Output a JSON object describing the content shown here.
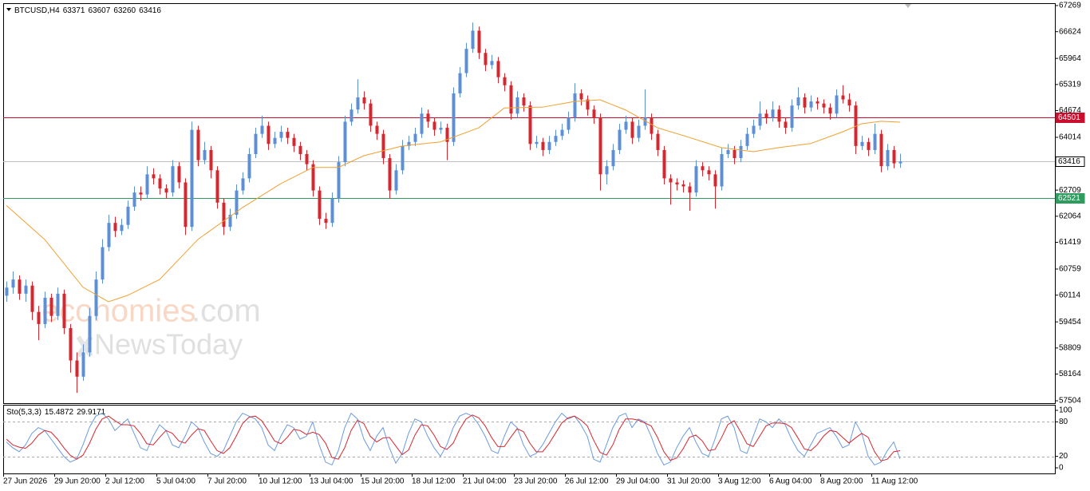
{
  "chart_data": {
    "type": "candlestick",
    "symbol": "BTCUSD,H4",
    "colors": {
      "up": "#5b8fd8",
      "down": "#d7262e",
      "ma": "#f0a030",
      "bid": "#c0c0c0"
    },
    "ylim": [
      57504,
      67269
    ],
    "yticks": [
      67269,
      66624,
      65964,
      65319,
      64674,
      64014,
      62709,
      62064,
      61419,
      60759,
      60114,
      59454,
      58809,
      58164,
      57504
    ],
    "x_labels": [
      "27 Jun 2026",
      "29 Jun 20:00",
      "2 Jul 12:00",
      "5 Jul 04:00",
      "7 Jul 20:00",
      "10 Jul 12:00",
      "13 Jul 04:00",
      "15 Jul 20:00",
      "18 Jul 12:00",
      "21 Jul 04:00",
      "23 Jul 20:00",
      "26 Jul 12:00",
      "29 Jul 04:00",
      "31 Jul 20:00",
      "3 Aug 12:00",
      "6 Aug 04:00",
      "8 Aug 20:00",
      "11 Aug 12:00"
    ],
    "candles": [
      [
        60100,
        60450,
        59950,
        60300
      ],
      [
        60300,
        60700,
        60150,
        60500
      ],
      [
        60500,
        60600,
        60000,
        60150
      ],
      [
        60150,
        60500,
        59950,
        60350
      ],
      [
        60350,
        60450,
        59500,
        59700
      ],
      [
        59700,
        59850,
        59000,
        59400
      ],
      [
        59400,
        60200,
        59300,
        60050
      ],
      [
        60050,
        60150,
        59450,
        59600
      ],
      [
        59600,
        60300,
        59500,
        60150
      ],
      [
        60150,
        60250,
        59150,
        59300
      ],
      [
        59300,
        59400,
        58200,
        58500
      ],
      [
        58500,
        58700,
        57700,
        58100
      ],
      [
        58100,
        58900,
        58000,
        58700
      ],
      [
        58700,
        59800,
        58600,
        59600
      ],
      [
        59600,
        60700,
        59500,
        60500
      ],
      [
        60500,
        61500,
        60400,
        61300
      ],
      [
        61300,
        62100,
        61200,
        61900
      ],
      [
        61900,
        62050,
        61550,
        61700
      ],
      [
        61700,
        62000,
        61600,
        61850
      ],
      [
        61850,
        62450,
        61750,
        62300
      ],
      [
        62300,
        62800,
        62200,
        62650
      ],
      [
        62650,
        62800,
        62450,
        62600
      ],
      [
        62600,
        63300,
        62500,
        63100
      ],
      [
        63100,
        63250,
        62850,
        63000
      ],
      [
        63000,
        63100,
        62600,
        62750
      ],
      [
        62750,
        62850,
        62500,
        62650
      ],
      [
        62650,
        63450,
        62550,
        63300
      ],
      [
        63300,
        63400,
        62750,
        62900
      ],
      [
        62900,
        63000,
        61600,
        61800
      ],
      [
        61800,
        64400,
        61700,
        64200
      ],
      [
        64200,
        64300,
        63300,
        63450
      ],
      [
        63450,
        63900,
        63350,
        63700
      ],
      [
        63700,
        63800,
        63000,
        63200
      ],
      [
        63200,
        63300,
        62250,
        62400
      ],
      [
        62400,
        62500,
        61600,
        61800
      ],
      [
        61800,
        62250,
        61700,
        62100
      ],
      [
        62100,
        62850,
        62000,
        62700
      ],
      [
        62700,
        63150,
        62600,
        63000
      ],
      [
        63000,
        63750,
        62900,
        63600
      ],
      [
        63600,
        64250,
        63500,
        64100
      ],
      [
        64100,
        64550,
        64000,
        64300
      ],
      [
        64300,
        64400,
        63700,
        63850
      ],
      [
        63850,
        64150,
        63750,
        64000
      ],
      [
        64000,
        64300,
        63900,
        64150
      ],
      [
        64150,
        64250,
        63850,
        64000
      ],
      [
        64000,
        64100,
        63650,
        63800
      ],
      [
        63800,
        63900,
        63450,
        63600
      ],
      [
        63600,
        63700,
        63200,
        63350
      ],
      [
        63350,
        63450,
        62550,
        62700
      ],
      [
        62700,
        62800,
        61850,
        62000
      ],
      [
        62000,
        62150,
        61750,
        61900
      ],
      [
        61900,
        62650,
        61800,
        62500
      ],
      [
        62500,
        63550,
        62400,
        63400
      ],
      [
        63400,
        64550,
        63300,
        64400
      ],
      [
        64400,
        64850,
        64300,
        64700
      ],
      [
        64700,
        65450,
        64600,
        65000
      ],
      [
        65000,
        65150,
        64700,
        64850
      ],
      [
        64850,
        64950,
        64150,
        64300
      ],
      [
        64300,
        64400,
        63950,
        64100
      ],
      [
        64100,
        64200,
        63350,
        63500
      ],
      [
        63500,
        63600,
        62500,
        62700
      ],
      [
        62700,
        63350,
        62600,
        63200
      ],
      [
        63200,
        63950,
        63100,
        63800
      ],
      [
        63800,
        64050,
        63700,
        63900
      ],
      [
        63900,
        64250,
        63800,
        64100
      ],
      [
        64100,
        64750,
        64000,
        64600
      ],
      [
        64600,
        64700,
        64250,
        64400
      ],
      [
        64400,
        64500,
        64050,
        64200
      ],
      [
        64200,
        64400,
        64100,
        64250
      ],
      [
        64250,
        64350,
        63450,
        63900
      ],
      [
        63900,
        65250,
        63800,
        65100
      ],
      [
        65100,
        65750,
        65000,
        65600
      ],
      [
        65600,
        66350,
        65500,
        66200
      ],
      [
        66200,
        66850,
        66100,
        66650
      ],
      [
        66650,
        66750,
        65950,
        66100
      ],
      [
        66100,
        66200,
        65650,
        65800
      ],
      [
        65800,
        66050,
        65700,
        65900
      ],
      [
        65900,
        66000,
        65350,
        65500
      ],
      [
        65500,
        65600,
        65150,
        65300
      ],
      [
        65300,
        65400,
        64450,
        64600
      ],
      [
        64600,
        65150,
        64500,
        65000
      ],
      [
        65000,
        65100,
        64650,
        64800
      ],
      [
        64800,
        64900,
        63700,
        63850
      ],
      [
        63850,
        64050,
        63750,
        63900
      ],
      [
        63900,
        64000,
        63550,
        63700
      ],
      [
        63700,
        64050,
        63600,
        63900
      ],
      [
        63900,
        64200,
        63800,
        64050
      ],
      [
        64050,
        64350,
        63950,
        64200
      ],
      [
        64200,
        64650,
        64100,
        64500
      ],
      [
        64500,
        65350,
        64400,
        65100
      ],
      [
        65100,
        65200,
        64800,
        64950
      ],
      [
        64950,
        65050,
        64550,
        64700
      ],
      [
        64700,
        64800,
        64350,
        64500
      ],
      [
        64500,
        64600,
        62700,
        63100
      ],
      [
        63100,
        63450,
        62850,
        63300
      ],
      [
        63300,
        63850,
        63200,
        63700
      ],
      [
        63700,
        64350,
        63600,
        64200
      ],
      [
        64200,
        64550,
        64100,
        64400
      ],
      [
        64400,
        64500,
        63850,
        64000
      ],
      [
        64000,
        64450,
        63900,
        64300
      ],
      [
        64300,
        65200,
        64200,
        64500
      ],
      [
        64500,
        64600,
        63950,
        64100
      ],
      [
        64100,
        64200,
        63550,
        63700
      ],
      [
        63700,
        63800,
        62850,
        63000
      ],
      [
        63000,
        63100,
        62350,
        62900
      ],
      [
        62900,
        63000,
        62700,
        62850
      ],
      [
        62850,
        62950,
        62650,
        62800
      ],
      [
        62800,
        62900,
        62200,
        62650
      ],
      [
        62650,
        63450,
        62550,
        63300
      ],
      [
        63300,
        63400,
        63050,
        63200
      ],
      [
        63200,
        63300,
        62950,
        63100
      ],
      [
        63100,
        63200,
        62250,
        62800
      ],
      [
        62800,
        63750,
        62700,
        63600
      ],
      [
        63600,
        63850,
        63500,
        63700
      ],
      [
        63700,
        63800,
        63350,
        63500
      ],
      [
        63500,
        63950,
        63400,
        63800
      ],
      [
        63800,
        64250,
        63700,
        64100
      ],
      [
        64100,
        64450,
        64000,
        64300
      ],
      [
        64300,
        64900,
        64200,
        64600
      ],
      [
        64600,
        64700,
        64350,
        64500
      ],
      [
        64500,
        64900,
        64400,
        64700
      ],
      [
        64700,
        64800,
        64250,
        64400
      ],
      [
        64400,
        64500,
        64100,
        64250
      ],
      [
        64250,
        64950,
        64150,
        64800
      ],
      [
        64800,
        65250,
        64700,
        65000
      ],
      [
        65000,
        65100,
        64600,
        64750
      ],
      [
        64750,
        65050,
        64650,
        64900
      ],
      [
        64900,
        65000,
        64700,
        64850
      ],
      [
        64850,
        64950,
        64600,
        64750
      ],
      [
        64750,
        64850,
        64450,
        64600
      ],
      [
        64600,
        65200,
        64500,
        65050
      ],
      [
        65050,
        65300,
        64850,
        64950
      ],
      [
        64950,
        65100,
        64650,
        64800
      ],
      [
        64800,
        64900,
        63600,
        63800
      ],
      [
        63800,
        64050,
        63700,
        63900
      ],
      [
        63900,
        64000,
        63550,
        63700
      ],
      [
        63700,
        64350,
        63600,
        64100
      ],
      [
        64100,
        64200,
        63150,
        63300
      ],
      [
        63300,
        63850,
        63200,
        63700
      ],
      [
        63700,
        63800,
        63250,
        63370
      ],
      [
        63371,
        63607,
        63260,
        63416
      ]
    ],
    "ma": {
      "x": [
        0,
        6,
        12,
        16,
        19,
        24,
        30,
        37,
        43,
        48,
        52,
        56,
        62,
        68,
        74,
        78,
        84,
        89,
        93,
        97,
        102,
        107,
        112,
        117,
        121,
        126,
        131,
        134,
        137,
        140
      ],
      "values": [
        62330,
        61490,
        60310,
        59950,
        60110,
        60500,
        61490,
        62280,
        62870,
        63270,
        63270,
        63560,
        63800,
        63900,
        64250,
        64740,
        64760,
        64900,
        64940,
        64690,
        64250,
        64010,
        63760,
        63660,
        63760,
        63860,
        64150,
        64350,
        64410,
        64390
      ]
    },
    "levels": [
      {
        "value": 64501,
        "color": "#c8102e"
      },
      {
        "value": 62521,
        "color": "#2e9b5f"
      }
    ],
    "indicator": {
      "name": "Sto(5,3,3)",
      "ylim": [
        0,
        100
      ],
      "yticks": [
        100,
        80,
        20,
        0
      ],
      "levels": [
        80,
        20
      ],
      "series": [
        {
          "color": "#6a9be0",
          "values": [
            45,
            35,
            28,
            40,
            60,
            70,
            65,
            50,
            35,
            20,
            10,
            15,
            40,
            70,
            90,
            95,
            85,
            65,
            75,
            85,
            60,
            35,
            30,
            55,
            75,
            65,
            40,
            35,
            55,
            80,
            70,
            45,
            25,
            20,
            30,
            55,
            80,
            95,
            90,
            85,
            70,
            40,
            30,
            55,
            75,
            70,
            50,
            55,
            80,
            40,
            10,
            5,
            30,
            70,
            95,
            85,
            50,
            30,
            55,
            70,
            35,
            8,
            25,
            60,
            85,
            80,
            55,
            35,
            20,
            40,
            70,
            90,
            95,
            90,
            75,
            55,
            30,
            25,
            55,
            80,
            70,
            40,
            20,
            25,
            40,
            60,
            80,
            95,
            85,
            90,
            75,
            55,
            15,
            10,
            40,
            70,
            90,
            95,
            70,
            85,
            80,
            55,
            25,
            5,
            10,
            35,
            55,
            70,
            45,
            25,
            20,
            50,
            85,
            90,
            70,
            30,
            25,
            55,
            85,
            80,
            70,
            85,
            75,
            50,
            30,
            20,
            40,
            60,
            65,
            70,
            55,
            35,
            40,
            80,
            60,
            20,
            5,
            10,
            30,
            45,
            15.4872
          ]
        },
        {
          "color": "#d7262e",
          "values": [
            50,
            40,
            36,
            34,
            43,
            57,
            65,
            62,
            50,
            35,
            22,
            15,
            22,
            42,
            67,
            85,
            90,
            82,
            75,
            75,
            73,
            60,
            42,
            40,
            53,
            65,
            60,
            47,
            43,
            57,
            68,
            65,
            47,
            30,
            25,
            35,
            55,
            77,
            88,
            90,
            82,
            65,
            47,
            42,
            53,
            67,
            65,
            58,
            62,
            58,
            43,
            18,
            15,
            35,
            65,
            83,
            77,
            55,
            45,
            52,
            53,
            38,
            23,
            31,
            57,
            75,
            73,
            57,
            37,
            32,
            43,
            67,
            85,
            92,
            87,
            73,
            53,
            37,
            37,
            53,
            68,
            63,
            43,
            28,
            28,
            42,
            60,
            78,
            87,
            90,
            83,
            73,
            48,
            27,
            22,
            40,
            67,
            85,
            85,
            83,
            78,
            73,
            53,
            28,
            13,
            17,
            33,
            53,
            57,
            47,
            30,
            32,
            52,
            75,
            82,
            63,
            42,
            37,
            55,
            73,
            78,
            78,
            77,
            70,
            52,
            33,
            30,
            40,
            55,
            65,
            63,
            53,
            43,
            52,
            60,
            53,
            28,
            12,
            15,
            28,
            29.9171
          ]
        }
      ]
    },
    "watermark": [
      "economies",
      ".com",
      "NewsToday"
    ]
  }
}
